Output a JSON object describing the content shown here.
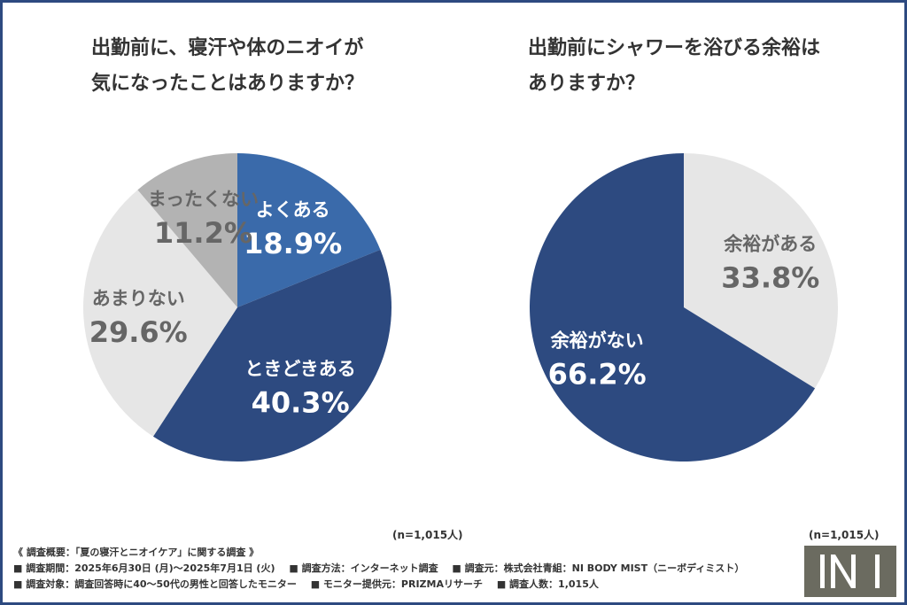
{
  "colors": {
    "frame": "#2d4a80",
    "blue_light": "#3a6aaa",
    "blue_dark": "#2d4a80",
    "gray_light": "#e6e6e6",
    "gray_mid": "#b3b3b3",
    "text_dark": "#333333",
    "text_gray": "#666666",
    "logo_bg": "#6b6b60"
  },
  "left_title": [
    "出勤前に、寝汗や体のニオイが",
    "気になったことはありますか？"
  ],
  "right_title": [
    "出勤前にシャワーを浴びる余裕は",
    "ありますか？"
  ],
  "n_note_left": "(n=1,015人)",
  "n_note_right": "(n=1,015人)",
  "survey": {
    "heading": "《 調査概要：「夏の寝汗とニオイケア」に関する調査 》",
    "line1": [
      "■ 調査期間：2025年6月30日 (月)〜2025年7月1日 (火)",
      "■ 調査方法：インターネット調査",
      "■ 調査元：株式会社青組：NI BODY MIST（ニーボディミスト）"
    ],
    "line2": [
      "■ 調査対象：調査回答時に40〜50代の男性と回答したモニター",
      "■ モニター提供元：PRIZMAリサーチ",
      "■ 調査人数：1,015人"
    ]
  },
  "chart_data": [
    {
      "type": "pie",
      "title": "出勤前に、寝汗や体のニオイが気になったことはありますか？",
      "n": "(n=1,015人)",
      "slices": [
        {
          "label": "よくある",
          "value": 18.9,
          "value_label": "18.9%",
          "color": "#3a6aaa",
          "text_color": "#ffffff"
        },
        {
          "label": "ときどきある",
          "value": 40.3,
          "value_label": "40.3%",
          "color": "#2d4a80",
          "text_color": "#ffffff"
        },
        {
          "label": "あまりない",
          "value": 29.6,
          "value_label": "29.6%",
          "color": "#e6e6e6",
          "text_color": "#666666"
        },
        {
          "label": "まったくない",
          "value": 11.2,
          "value_label": "11.2%",
          "color": "#b3b3b3",
          "text_color": "#666666"
        }
      ]
    },
    {
      "type": "pie",
      "title": "出勤前にシャワーを浴びる余裕はありますか？",
      "n": "(n=1,015人)",
      "slices": [
        {
          "label": "余裕がある",
          "value": 33.8,
          "value_label": "33.8%",
          "color": "#e6e6e6",
          "text_color": "#666666"
        },
        {
          "label": "余裕がない",
          "value": 66.2,
          "value_label": "66.2%",
          "color": "#2d4a80",
          "text_color": "#ffffff"
        }
      ]
    }
  ]
}
